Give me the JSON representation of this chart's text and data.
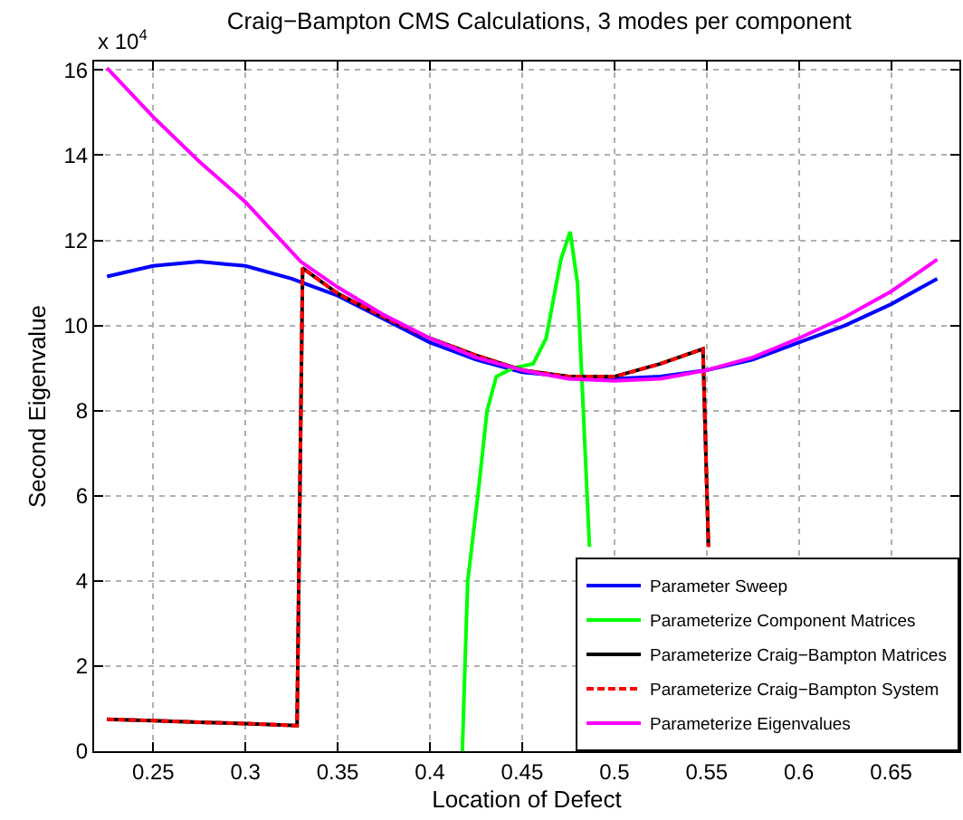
{
  "chart_data": {
    "type": "line",
    "title": "Craig−Bampton CMS Calculations, 3 modes per component",
    "xlabel": "Location of Defect",
    "ylabel": "Second Eigenvalue",
    "annotations": [
      "x 10$^{4}$"
    ],
    "xlim": [
      0.218,
      0.687
    ],
    "xticks": [
      0.25,
      0.3,
      0.35,
      0.4,
      0.45,
      0.5,
      0.55,
      0.6,
      0.65
    ],
    "ylim": [
      0,
      16.2
    ],
    "yticks": [
      0,
      2,
      4,
      6,
      8,
      10,
      12,
      14,
      16
    ],
    "grid": true,
    "legend": "bottom right",
    "series": [
      {
        "name": "Parameter Sweep",
        "color": "#0000ff",
        "line_style": "solid",
        "x": [
          0.225,
          0.25,
          0.275,
          0.3,
          0.325,
          0.35,
          0.375,
          0.4,
          0.425,
          0.45,
          0.475,
          0.5,
          0.525,
          0.55,
          0.575,
          0.6,
          0.625,
          0.65,
          0.675
        ],
        "values": [
          11.15,
          11.4,
          11.5,
          11.4,
          11.1,
          10.7,
          10.15,
          9.6,
          9.2,
          8.9,
          8.8,
          8.75,
          8.8,
          8.95,
          9.2,
          9.6,
          10.0,
          10.5,
          11.1
        ]
      },
      {
        "name": "Parameterize Component Matrices",
        "color": "#00ff00",
        "line_style": "solid",
        "x": [
          0.4176,
          0.419,
          0.4205,
          0.426,
          0.431,
          0.436,
          0.445,
          0.456,
          0.463,
          0.471,
          0.476,
          0.48,
          0.482,
          0.4865
        ],
        "values": [
          0,
          2,
          4,
          6,
          8,
          8.8,
          9.0,
          9.1,
          9.7,
          11.55,
          12.2,
          11.0,
          9.1,
          4.8
        ]
      },
      {
        "name": "Parameterize Craig−Bampton Matrices",
        "color": "#000000",
        "line_style": "solid",
        "x": [
          0.225,
          0.25,
          0.275,
          0.3,
          0.328,
          0.331,
          0.35,
          0.375,
          0.4,
          0.425,
          0.45,
          0.475,
          0.5,
          0.525,
          0.548,
          0.551
        ],
        "values": [
          0.75,
          0.72,
          0.68,
          0.65,
          0.6,
          11.35,
          10.75,
          10.2,
          9.7,
          9.3,
          8.95,
          8.8,
          8.8,
          9.1,
          9.45,
          4.8
        ]
      },
      {
        "name": "Parameterize Craig−Bampton System",
        "color": "#ff0000",
        "line_style": "dashed",
        "x": [
          0.225,
          0.25,
          0.275,
          0.3,
          0.328,
          0.331,
          0.35,
          0.375,
          0.4,
          0.425,
          0.45,
          0.475,
          0.5,
          0.525,
          0.548,
          0.551
        ],
        "values": [
          0.75,
          0.72,
          0.68,
          0.65,
          0.6,
          11.35,
          10.75,
          10.2,
          9.7,
          9.3,
          8.95,
          8.8,
          8.8,
          9.1,
          9.45,
          4.8
        ]
      },
      {
        "name": "Parameterize Eigenvalues",
        "color": "#ff00ff",
        "line_style": "solid",
        "x": [
          0.225,
          0.25,
          0.275,
          0.3,
          0.33,
          0.35,
          0.375,
          0.4,
          0.425,
          0.45,
          0.475,
          0.5,
          0.525,
          0.55,
          0.575,
          0.6,
          0.625,
          0.65,
          0.675
        ],
        "values": [
          16.05,
          14.9,
          13.85,
          12.9,
          11.5,
          10.9,
          10.25,
          9.7,
          9.25,
          8.95,
          8.75,
          8.7,
          8.75,
          8.95,
          9.25,
          9.7,
          10.2,
          10.8,
          11.55
        ]
      }
    ]
  }
}
